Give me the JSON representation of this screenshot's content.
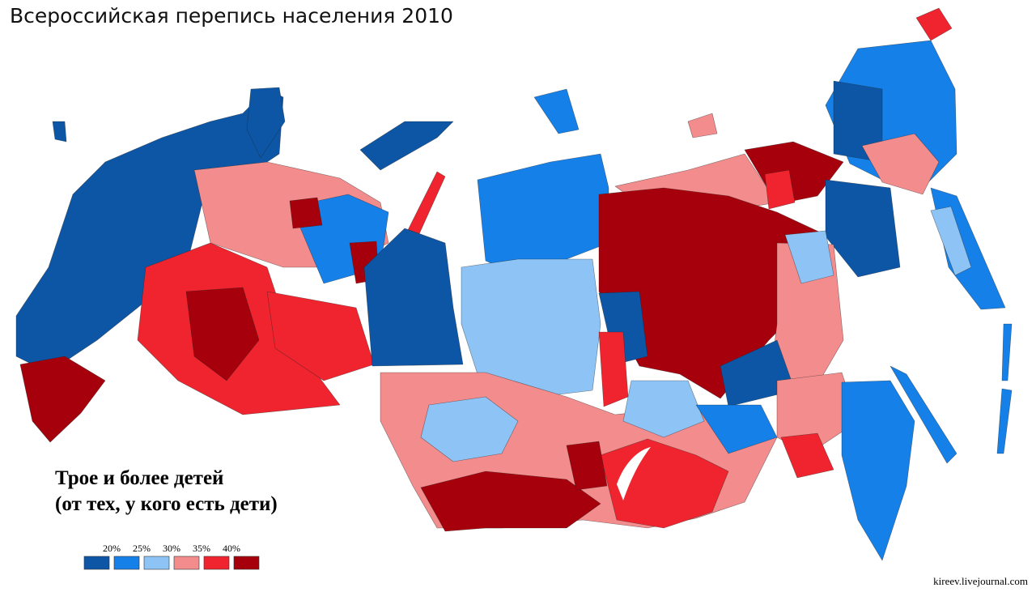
{
  "title": "Всероссийская перепись населения 2010",
  "subtitle": [
    "Трое и более детей",
    "(от тех, у кого есть дети)"
  ],
  "legend": {
    "labels": [
      "20%",
      "25%",
      "30%",
      "35%",
      "40%"
    ],
    "colors": [
      "#0d56a6",
      "#1580e8",
      "#8ec4f5",
      "#f38c8c",
      "#f0242e",
      "#a5000b"
    ]
  },
  "credit": "kireev.livejournal.com"
}
